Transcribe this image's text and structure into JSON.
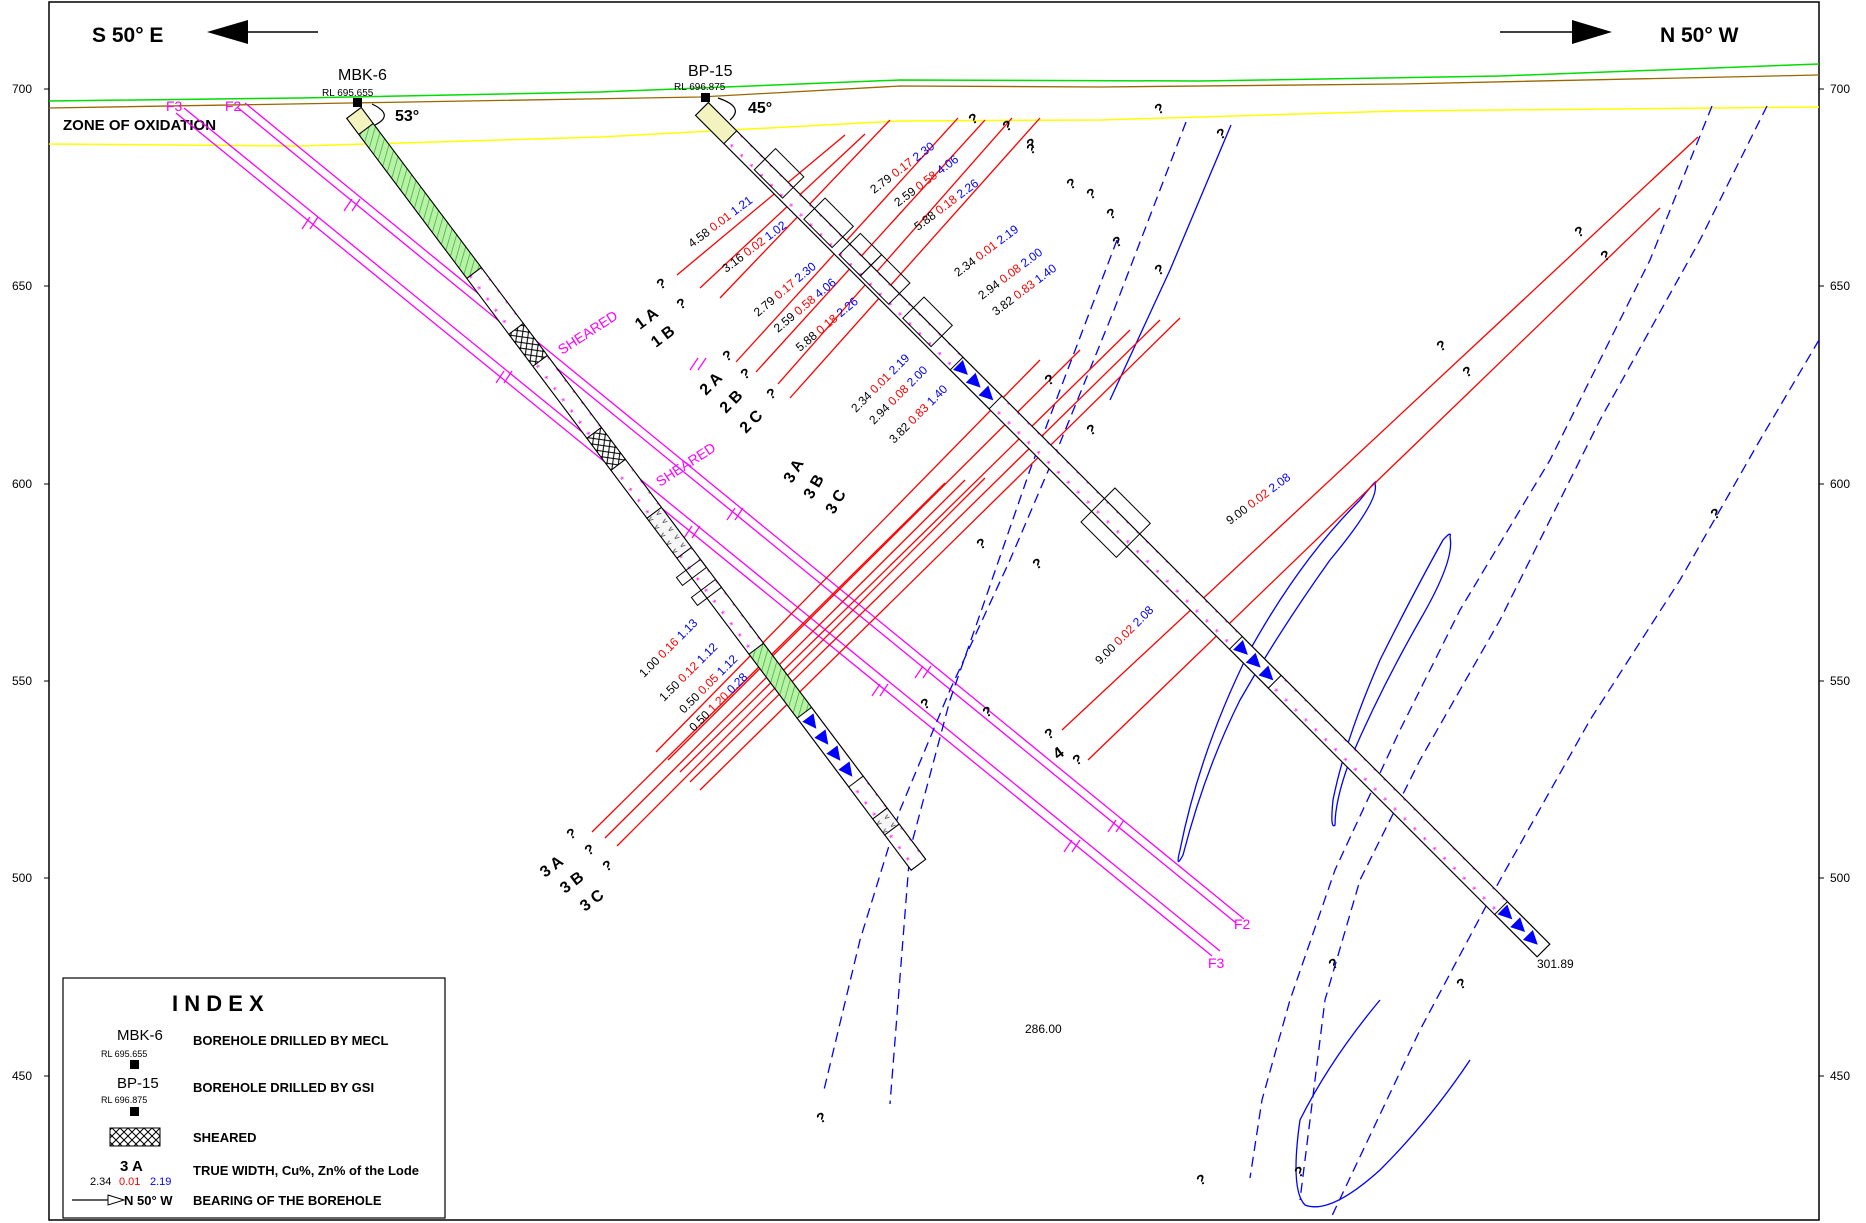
{
  "header": {
    "left_bearing": "S 50° E",
    "right_bearing": "N 50° W",
    "zone_label": "ZONE OF OXIDATION"
  },
  "rl_axis": {
    "left_labels": [
      "700",
      "650",
      "600",
      "550",
      "500",
      "450"
    ],
    "right_labels": [
      "700",
      "650",
      "600",
      "550",
      "500",
      "450"
    ]
  },
  "boreholes": [
    {
      "name": "MBK-6",
      "rl": "RL 695.655",
      "angle": "53°",
      "end_depth": "286.00"
    },
    {
      "name": "BP-15",
      "rl": "RL 696.875",
      "angle": "45°",
      "end_depth": "301.89"
    }
  ],
  "faults": [
    "F3",
    "F2",
    "F2",
    "F3"
  ],
  "sheared_labels": [
    "SHEARED",
    "SHEARED"
  ],
  "lodes": {
    "bp15_upper": [
      {
        "tw": "4.58",
        "cu": "0.01",
        "zn": "1.21"
      },
      {
        "tw": "3.16",
        "cu": "0.02",
        "zn": "1.02"
      },
      {
        "tw": "2.79",
        "cu": "0.17",
        "zn": "2.30"
      },
      {
        "tw": "2.59",
        "cu": "0.58",
        "zn": "4.06"
      },
      {
        "tw": "5.88",
        "cu": "0.18",
        "zn": "2.26"
      }
    ],
    "bp15_upper_mirror": [
      {
        "tw": "2.79",
        "cu": "0.17",
        "zn": "2.30"
      },
      {
        "tw": "2.59",
        "cu": "0.58",
        "zn": "4.06"
      },
      {
        "tw": "5.88",
        "cu": "0.18",
        "zn": "2.26"
      }
    ],
    "bp15_mid": [
      {
        "tw": "2.34",
        "cu": "0.01",
        "zn": "2.19"
      },
      {
        "tw": "2.94",
        "cu": "0.08",
        "zn": "2.00"
      },
      {
        "tw": "3.82",
        "cu": "0.83",
        "zn": "1.40"
      }
    ],
    "mbk6_mid": [
      {
        "tw": "2.34",
        "cu": "0.01",
        "zn": "2.19"
      },
      {
        "tw": "2.94",
        "cu": "0.08",
        "zn": "2.00"
      },
      {
        "tw": "3.82",
        "cu": "0.83",
        "zn": "1.40"
      }
    ],
    "bp15_lode4": [
      {
        "tw": "9.00",
        "cu": "0.02",
        "zn": "2.08"
      },
      {
        "tw": "9.00",
        "cu": "0.02",
        "zn": "2.08"
      }
    ],
    "mbk6_lower": [
      {
        "tw": "1.00",
        "cu": "0.16",
        "zn": "1.13"
      },
      {
        "tw": "1.50",
        "cu": "0.12",
        "zn": "1.12"
      },
      {
        "tw": "0.50",
        "cu": "0.05",
        "zn": "1.12"
      },
      {
        "tw": "0.50",
        "cu": "1.20",
        "zn": "0.28"
      }
    ]
  },
  "lode_names": {
    "upper": [
      "1 A",
      "1 B"
    ],
    "mid": [
      "2 A",
      "2 B",
      "2 C"
    ],
    "three": [
      "3 A",
      "3 B",
      "3 C"
    ],
    "three_lower": [
      "3 A",
      "3 B",
      "3 C"
    ],
    "four": "4"
  },
  "question_mark": "?",
  "index": {
    "title": "I N D E X",
    "items": [
      {
        "sym_name": "MBK-6",
        "sym_rl": "RL 695.655",
        "desc": "BOREHOLE DRILLED BY MECL"
      },
      {
        "sym_name": "BP-15",
        "sym_rl": "RL 696.875",
        "desc": "BOREHOLE DRILLED BY GSI"
      },
      {
        "desc": "SHEARED"
      },
      {
        "sym_lode": "3 A",
        "sym_tw": "2.34",
        "sym_cu": "0.01",
        "sym_zn": "2.19",
        "desc": "TRUE WIDTH, Cu%, Zn% of the Lode"
      },
      {
        "sym_bearing": "N 50° W",
        "desc": "BEARING OF THE BOREHOLE"
      }
    ]
  },
  "colors": {
    "lode": "#ff0000",
    "fault": "#ff00ff",
    "copper": "#ff0000",
    "zinc": "#0000ff",
    "structure": "#0000ff",
    "surface": "#00dd00",
    "oxidation": "#ffff00",
    "topsoil": "#996600"
  }
}
